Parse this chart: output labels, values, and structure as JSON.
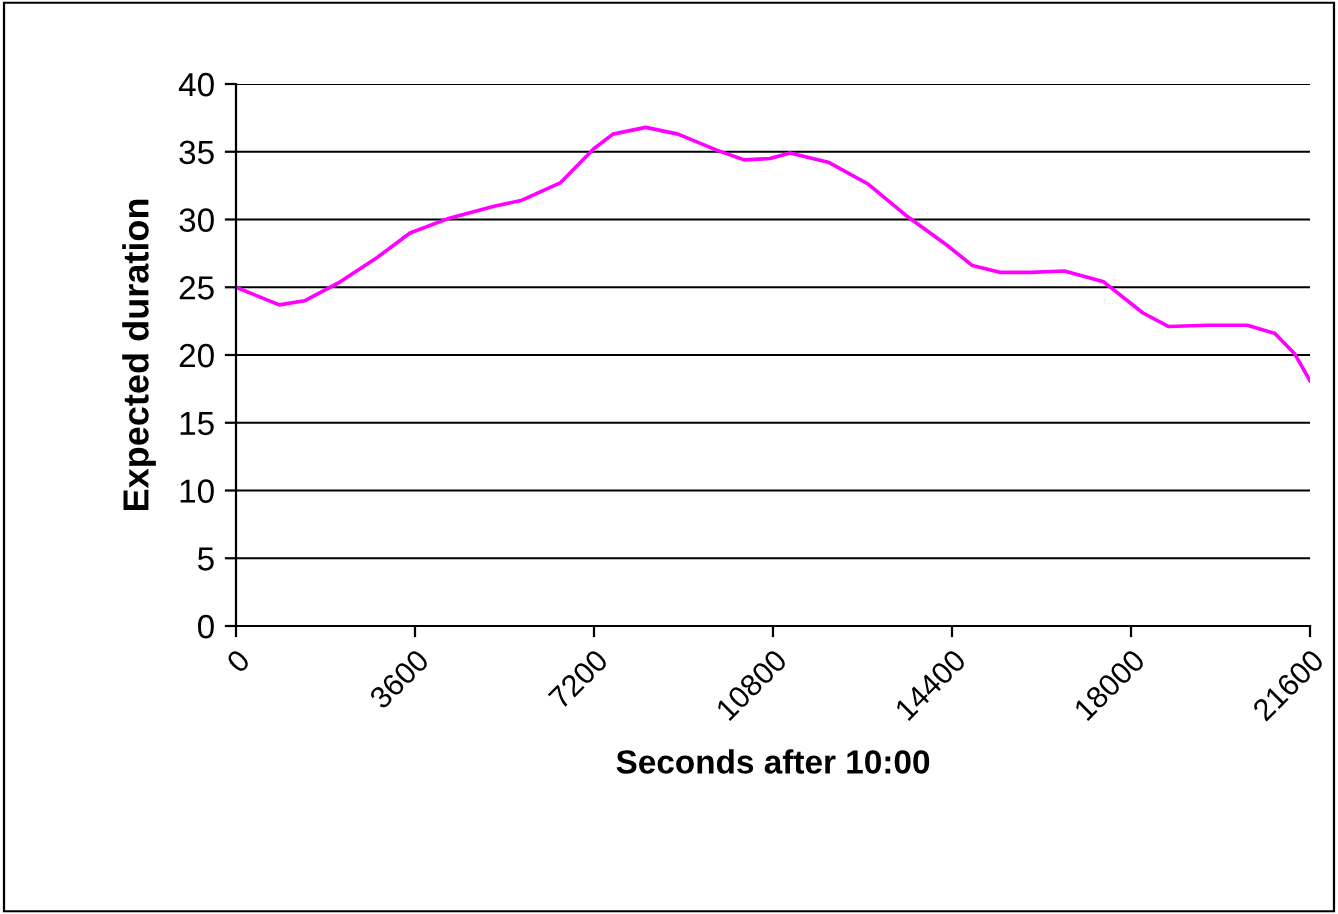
{
  "chart_data": {
    "type": "line",
    "xlabel": "Seconds after 10:00",
    "ylabel": "Expected duration",
    "x": [
      0,
      870,
      1380,
      2050,
      2840,
      3500,
      4290,
      5210,
      5730,
      6520,
      7190,
      7580,
      8240,
      8890,
      9680,
      10220,
      10740,
      11140,
      11930,
      12720,
      13510,
      14300,
      14810,
      15360,
      15990,
      16660,
      17450,
      18240,
      18760,
      19550,
      20340,
      20890,
      21290,
      21600
    ],
    "series": [
      {
        "color": "#ff00ff",
        "values": [
          25.0,
          23.7,
          24.0,
          25.3,
          27.2,
          29.0,
          30.1,
          31.0,
          31.4,
          32.7,
          35.2,
          36.3,
          36.8,
          36.3,
          35.1,
          34.4,
          34.5,
          34.9,
          34.2,
          32.6,
          30.2,
          28.1,
          26.6,
          26.1,
          26.1,
          26.2,
          25.4,
          23.1,
          22.1,
          22.2,
          22.2,
          21.6,
          20.1,
          18.1
        ]
      }
    ],
    "xlim": [
      0,
      21600
    ],
    "xticks": [
      0,
      3600,
      7200,
      10800,
      14400,
      18000,
      21600
    ],
    "ylim": [
      0,
      40
    ],
    "yticks": [
      0,
      5,
      10,
      15,
      20,
      25,
      30,
      35,
      40
    ],
    "grid": "y",
    "legend": false,
    "marker": "none",
    "line_style": "solid"
  }
}
